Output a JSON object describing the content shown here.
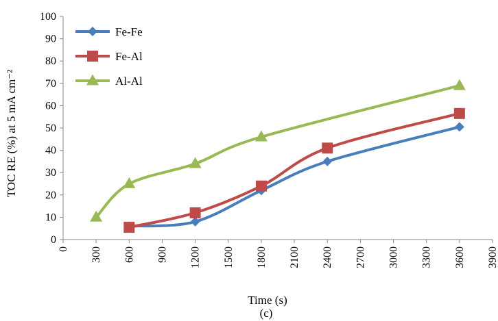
{
  "chart_data": {
    "type": "line",
    "xlabel": "Time (s)",
    "ylabel": "TOC RE (%) at 5 mA cm⁻²",
    "caption": "(c)",
    "xlim": [
      0,
      3900
    ],
    "ylim": [
      0,
      100
    ],
    "x_ticks": [
      0,
      300,
      600,
      900,
      1200,
      1500,
      1800,
      2100,
      2400,
      2700,
      3000,
      3300,
      3600,
      3900
    ],
    "y_ticks": [
      0,
      10,
      20,
      30,
      40,
      50,
      60,
      70,
      80,
      90,
      100
    ],
    "grid": false,
    "smoothed": true,
    "legend_position": "top-left",
    "series": [
      {
        "name": "Fe-Fe",
        "marker": "diamond",
        "color": "#4A7EBB",
        "x": [
          600,
          1200,
          1800,
          2400,
          3600
        ],
        "y": [
          6,
          8,
          22,
          35,
          50.5
        ]
      },
      {
        "name": "Fe-Al",
        "marker": "square",
        "color": "#BE4B48",
        "x": [
          600,
          1200,
          1800,
          2400,
          3600
        ],
        "y": [
          5.5,
          12,
          24,
          41,
          56.5
        ]
      },
      {
        "name": "Al-Al",
        "marker": "triangle",
        "color": "#98B954",
        "x": [
          300,
          600,
          1200,
          1800,
          3600
        ],
        "y": [
          10,
          25,
          34,
          46,
          69
        ]
      }
    ]
  }
}
